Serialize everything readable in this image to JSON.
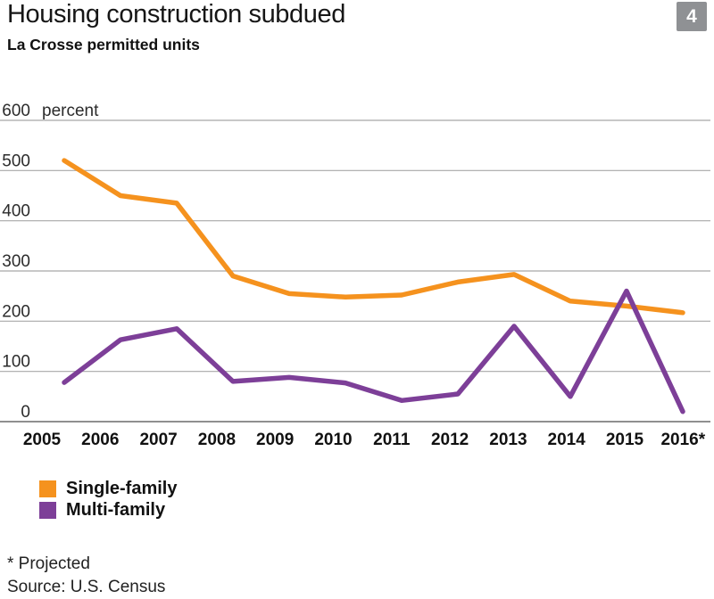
{
  "header": {
    "title": "Housing construction subdued",
    "badge": "4",
    "subtitle": "La Crosse permitted units"
  },
  "chart_data": {
    "type": "line",
    "title": "La Crosse permitted units",
    "unit_label": "percent",
    "x_tick_labels": [
      "2005",
      "2006",
      "2007",
      "2008",
      "2009",
      "2010",
      "2011",
      "2012",
      "2013",
      "2014",
      "2015",
      "2016*"
    ],
    "series": [
      {
        "name": "Single-family",
        "color": "#f5921e",
        "values": [
          520,
          450,
          435,
          290,
          255,
          248,
          252,
          278,
          293,
          240,
          230,
          217
        ]
      },
      {
        "name": "Multi-family",
        "color": "#7d3f98",
        "values": [
          78,
          163,
          185,
          80,
          88,
          77,
          42,
          55,
          190,
          50,
          260,
          20
        ]
      }
    ],
    "ylim": [
      0,
      600
    ],
    "yticks": [
      0,
      100,
      200,
      300,
      400,
      500,
      600
    ],
    "grid": true,
    "legend_position": "bottom-left"
  },
  "footer": {
    "projected_note": "* Projected",
    "source": "Source: U.S. Census"
  },
  "colors": {
    "single_family": "#f5921e",
    "multi_family": "#7d3f98",
    "badge_bg": "#8f9194",
    "gridline": "#a8a8a8",
    "baseline": "#8f8f8f",
    "text": "#111111"
  }
}
